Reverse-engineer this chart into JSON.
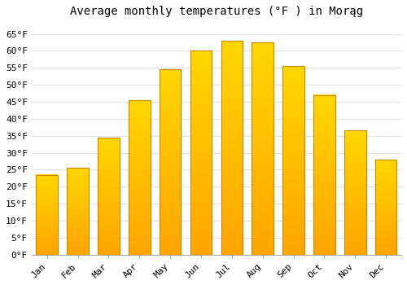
{
  "title": "Average monthly temperatures (°F ) in Morąg",
  "months": [
    "Jan",
    "Feb",
    "Mar",
    "Apr",
    "May",
    "Jun",
    "Jul",
    "Aug",
    "Sep",
    "Oct",
    "Nov",
    "Dec"
  ],
  "values": [
    23.5,
    25.5,
    34.5,
    45.5,
    54.5,
    60.0,
    63.0,
    62.5,
    55.5,
    47.0,
    36.5,
    28.0
  ],
  "bar_color_bottom": "#FFA500",
  "bar_color_top": "#FFD700",
  "bar_edge_color": "#CC8800",
  "background_color": "#ffffff",
  "grid_color": "#e0e0e0",
  "ylim": [
    0,
    68
  ],
  "yticks": [
    0,
    5,
    10,
    15,
    20,
    25,
    30,
    35,
    40,
    45,
    50,
    55,
    60,
    65
  ],
  "title_fontsize": 10,
  "tick_fontsize": 8,
  "font_family": "monospace"
}
